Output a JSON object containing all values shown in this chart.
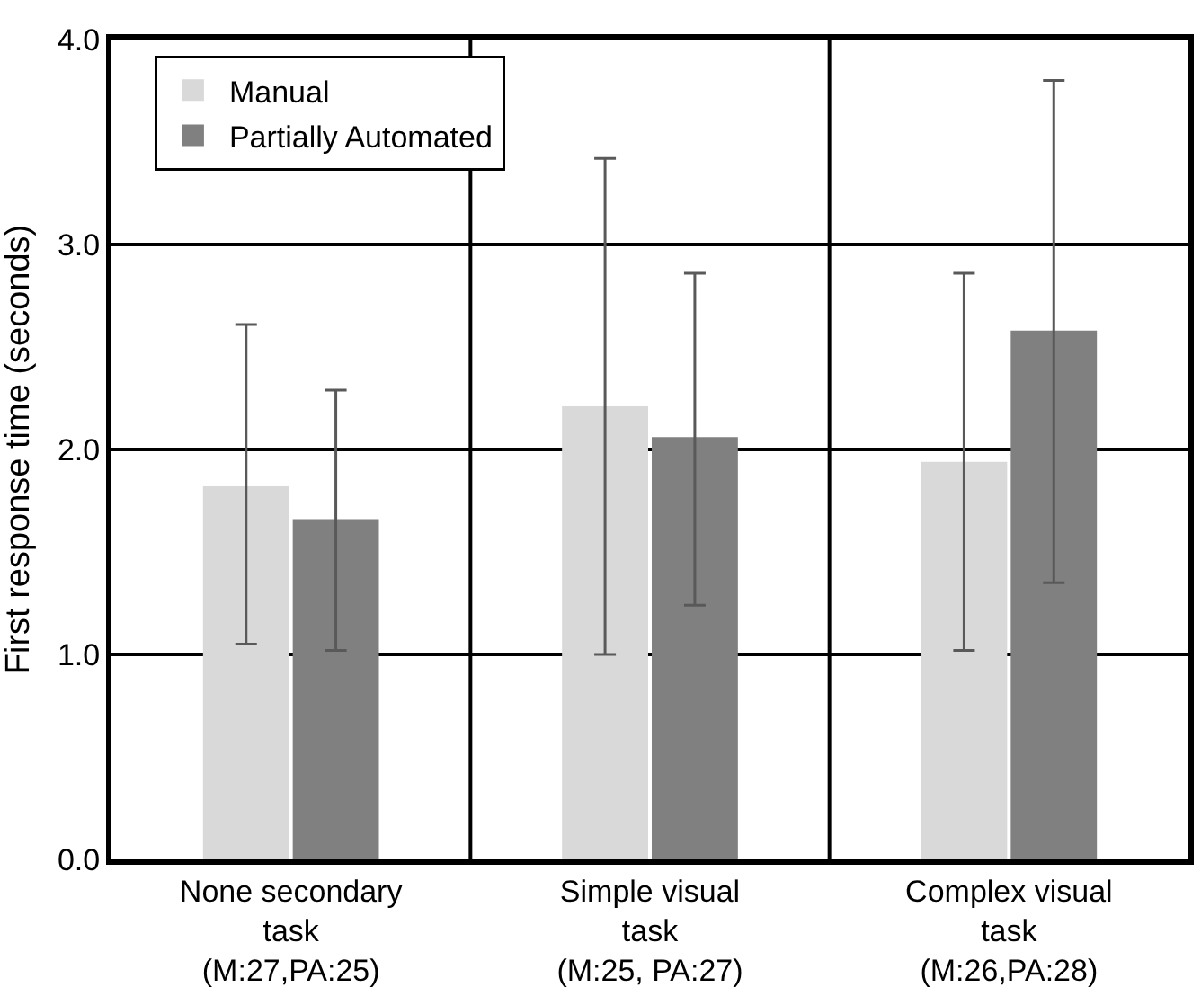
{
  "chart_data": {
    "type": "bar",
    "ylabel": "First response time (seconds)",
    "categories": [
      "None secondary\ntask\n(M:27,PA:25)",
      "Simple visual\ntask\n(M:25, PA:27)",
      "Complex visual\ntask\n(M:26,PA:28)"
    ],
    "series": [
      {
        "name": "Manual",
        "color": "#d9d9d9",
        "values": [
          1.82,
          2.21,
          1.94
        ],
        "errors": [
          [
            1.05,
            2.61
          ],
          [
            1.0,
            3.42
          ],
          [
            1.02,
            2.86
          ]
        ]
      },
      {
        "name": "Partially Automated",
        "color": "#808080",
        "values": [
          1.66,
          2.06,
          2.58
        ],
        "errors": [
          [
            1.02,
            2.29
          ],
          [
            1.24,
            2.86
          ],
          [
            1.35,
            3.8
          ]
        ]
      }
    ],
    "ylim": [
      0,
      4
    ],
    "yticks": [
      {
        "value": 0,
        "label": "0.0"
      },
      {
        "value": 1,
        "label": "1.0"
      },
      {
        "value": 2,
        "label": "2.0"
      },
      {
        "value": 3,
        "label": "3.0"
      },
      {
        "value": 4,
        "label": "4.0"
      }
    ],
    "grid": true,
    "legend": "top left"
  }
}
